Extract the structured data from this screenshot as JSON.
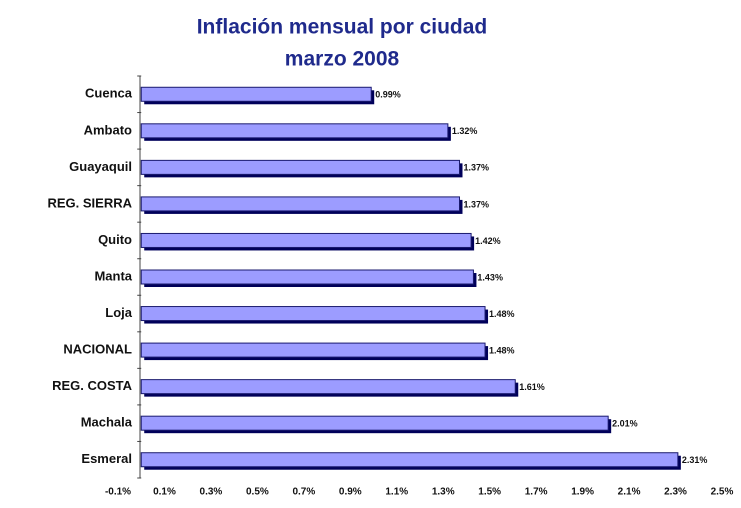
{
  "chart_data": {
    "type": "bar",
    "orientation": "horizontal",
    "title": [
      "Inflación mensual por ciudad",
      "marzo 2008"
    ],
    "categories": [
      "Cuenca",
      "Ambato",
      "Guayaquil",
      "REG. SIERRA",
      "Quito",
      "Manta",
      "Loja",
      "NACIONAL",
      "REG. COSTA",
      "Machala",
      "Esmeral"
    ],
    "values": [
      0.99,
      1.32,
      1.37,
      1.37,
      1.42,
      1.43,
      1.48,
      1.48,
      1.61,
      2.01,
      2.31
    ],
    "value_labels": [
      "0.99%",
      "1.32%",
      "1.37%",
      "1.37%",
      "1.42%",
      "1.43%",
      "1.48%",
      "1.48%",
      "1.61%",
      "2.01%",
      "2.31%"
    ],
    "color": "#9c9cff",
    "xlim": [
      -0.1,
      2.5
    ],
    "xticks": [
      {
        "value": -0.1,
        "label": "-0.1%"
      },
      {
        "value": 0.1,
        "label": "0.1%"
      },
      {
        "value": 0.3,
        "label": "0.3%"
      },
      {
        "value": 0.5,
        "label": "0.5%"
      },
      {
        "value": 0.7,
        "label": "0.7%"
      },
      {
        "value": 0.9,
        "label": "0.9%"
      },
      {
        "value": 1.1,
        "label": "1.1%"
      },
      {
        "value": 1.3,
        "label": "1.3%"
      },
      {
        "value": 1.5,
        "label": "1.5%"
      },
      {
        "value": 1.7,
        "label": "1.7%"
      },
      {
        "value": 1.9,
        "label": "1.9%"
      },
      {
        "value": 2.1,
        "label": "2.1%"
      },
      {
        "value": 2.3,
        "label": "2.3%"
      },
      {
        "value": 2.5,
        "label": "2.5%"
      }
    ],
    "grid": false
  }
}
